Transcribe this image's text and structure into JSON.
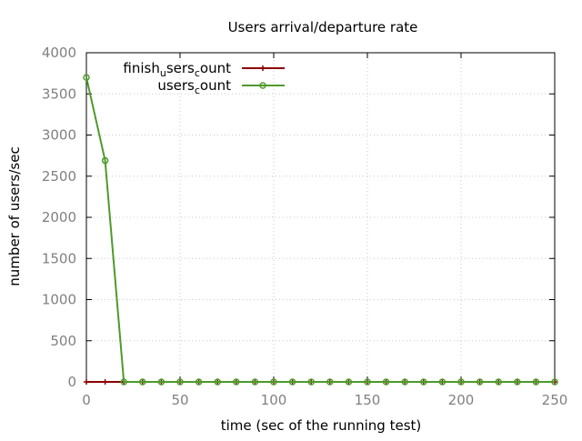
{
  "chart_data": {
    "type": "line",
    "title": "Users arrival/departure rate",
    "xlabel": "time (sec of the running test)",
    "ylabel": "number of users/sec",
    "xlim": [
      0,
      250
    ],
    "ylim": [
      0,
      4000
    ],
    "x_ticks": [
      "0",
      "50",
      "100",
      "150",
      "200",
      "250"
    ],
    "y_ticks": [
      "0",
      "500",
      "1000",
      "1500",
      "2000",
      "2500",
      "3000",
      "3500",
      "4000"
    ],
    "grid": true,
    "legend_position": "top-left",
    "series": [
      {
        "name_parts": [
          [
            "finish",
            ""
          ],
          [
            "u",
            "sub"
          ],
          [
            "sers",
            ""
          ],
          [
            "c",
            "sub"
          ],
          [
            "ount",
            ""
          ]
        ],
        "color": "#8b0000",
        "marker": "plus",
        "x": [
          0,
          10,
          20,
          30,
          40,
          50,
          60,
          70,
          80,
          90,
          100,
          110,
          120,
          130,
          140,
          150,
          160,
          170,
          180,
          190,
          200,
          210,
          220,
          230,
          240,
          250
        ],
        "y": [
          0,
          0,
          0,
          0,
          0,
          0,
          0,
          0,
          0,
          0,
          0,
          0,
          0,
          0,
          0,
          0,
          0,
          0,
          0,
          0,
          0,
          0,
          0,
          0,
          0,
          0
        ]
      },
      {
        "name_parts": [
          [
            "users",
            ""
          ],
          [
            "c",
            "sub"
          ],
          [
            "ount",
            ""
          ]
        ],
        "color": "#4e9a2b",
        "marker": "circle",
        "x": [
          0,
          10,
          20,
          30,
          40,
          50,
          60,
          70,
          80,
          90,
          100,
          110,
          120,
          130,
          140,
          150,
          160,
          170,
          180,
          190,
          200,
          210,
          220,
          230,
          240,
          250
        ],
        "y": [
          3700,
          2690,
          0,
          0,
          0,
          0,
          0,
          0,
          0,
          0,
          0,
          0,
          0,
          0,
          0,
          0,
          0,
          0,
          0,
          0,
          0,
          0,
          0,
          0,
          0,
          0
        ]
      }
    ]
  }
}
